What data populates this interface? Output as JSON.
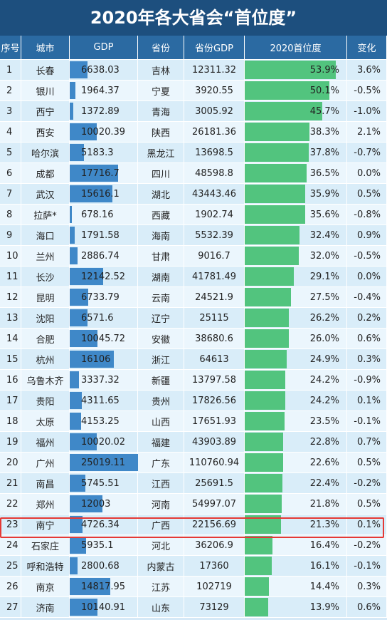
{
  "title": "2020年各大省会“首位度”",
  "headers": [
    "序号",
    "城市",
    "GDP",
    "省份",
    "省份GDP",
    "2020首位度",
    "变化"
  ],
  "colors": {
    "title_bg": "#1d4f7e",
    "header_bg": "#2b6aa2",
    "gdp_bar": "#3f88c8",
    "share_bar": "#52c47e",
    "highlight": "#e53935"
  },
  "highlight_rank": 23,
  "chart_data": {
    "type": "table",
    "title": "2020年各大省会“首位度”",
    "gdp_axis_max": 25019.11,
    "share_axis_max": 53.9,
    "rows": [
      {
        "rank": "1",
        "city": "长春",
        "gdp": "6638.03",
        "province": "吉林",
        "prov_gdp": "12311.32",
        "primacy": "53.9%",
        "change": "3.6%",
        "gdp_v": 6638.03,
        "primacy_v": 53.9
      },
      {
        "rank": "2",
        "city": "银川",
        "gdp": "1964.37",
        "province": "宁夏",
        "prov_gdp": "3920.55",
        "primacy": "50.1%",
        "change": "-0.5%",
        "gdp_v": 1964.37,
        "primacy_v": 50.1
      },
      {
        "rank": "3",
        "city": "西宁",
        "gdp": "1372.89",
        "province": "青海",
        "prov_gdp": "3005.92",
        "primacy": "45.7%",
        "change": "-1.0%",
        "gdp_v": 1372.89,
        "primacy_v": 45.7
      },
      {
        "rank": "4",
        "city": "西安",
        "gdp": "10020.39",
        "province": "陕西",
        "prov_gdp": "26181.36",
        "primacy": "38.3%",
        "change": "2.1%",
        "gdp_v": 10020.39,
        "primacy_v": 38.3
      },
      {
        "rank": "5",
        "city": "哈尔滨",
        "gdp": "5183.3",
        "province": "黑龙江",
        "prov_gdp": "13698.5",
        "primacy": "37.8%",
        "change": "-0.7%",
        "gdp_v": 5183.3,
        "primacy_v": 37.8
      },
      {
        "rank": "6",
        "city": "成都",
        "gdp": "17716.7",
        "province": "四川",
        "prov_gdp": "48598.8",
        "primacy": "36.5%",
        "change": "0.0%",
        "gdp_v": 17716.7,
        "primacy_v": 36.5
      },
      {
        "rank": "7",
        "city": "武汉",
        "gdp": "15616.1",
        "province": "湖北",
        "prov_gdp": "43443.46",
        "primacy": "35.9%",
        "change": "0.5%",
        "gdp_v": 15616.1,
        "primacy_v": 35.9
      },
      {
        "rank": "8",
        "city": "拉萨*",
        "gdp": "678.16",
        "province": "西藏",
        "prov_gdp": "1902.74",
        "primacy": "35.6%",
        "change": "-0.8%",
        "gdp_v": 678.16,
        "primacy_v": 35.6
      },
      {
        "rank": "9",
        "city": "海口",
        "gdp": "1791.58",
        "province": "海南",
        "prov_gdp": "5532.39",
        "primacy": "32.4%",
        "change": "0.9%",
        "gdp_v": 1791.58,
        "primacy_v": 32.4
      },
      {
        "rank": "10",
        "city": "兰州",
        "gdp": "2886.74",
        "province": "甘肃",
        "prov_gdp": "9016.7",
        "primacy": "32.0%",
        "change": "-0.5%",
        "gdp_v": 2886.74,
        "primacy_v": 32.0
      },
      {
        "rank": "11",
        "city": "长沙",
        "gdp": "12142.52",
        "province": "湖南",
        "prov_gdp": "41781.49",
        "primacy": "29.1%",
        "change": "0.0%",
        "gdp_v": 12142.52,
        "primacy_v": 29.1
      },
      {
        "rank": "12",
        "city": "昆明",
        "gdp": "6733.79",
        "province": "云南",
        "prov_gdp": "24521.9",
        "primacy": "27.5%",
        "change": "-0.4%",
        "gdp_v": 6733.79,
        "primacy_v": 27.5
      },
      {
        "rank": "13",
        "city": "沈阳",
        "gdp": "6571.6",
        "province": "辽宁",
        "prov_gdp": "25115",
        "primacy": "26.2%",
        "change": "0.2%",
        "gdp_v": 6571.6,
        "primacy_v": 26.2
      },
      {
        "rank": "14",
        "city": "合肥",
        "gdp": "10045.72",
        "province": "安徽",
        "prov_gdp": "38680.6",
        "primacy": "26.0%",
        "change": "0.6%",
        "gdp_v": 10045.72,
        "primacy_v": 26.0
      },
      {
        "rank": "15",
        "city": "杭州",
        "gdp": "16106",
        "province": "浙江",
        "prov_gdp": "64613",
        "primacy": "24.9%",
        "change": "0.3%",
        "gdp_v": 16106,
        "primacy_v": 24.9
      },
      {
        "rank": "16",
        "city": "乌鲁木齐",
        "gdp": "3337.32",
        "province": "新疆",
        "prov_gdp": "13797.58",
        "primacy": "24.2%",
        "change": "-0.9%",
        "gdp_v": 3337.32,
        "primacy_v": 24.2
      },
      {
        "rank": "17",
        "city": "贵阳",
        "gdp": "4311.65",
        "province": "贵州",
        "prov_gdp": "17826.56",
        "primacy": "24.2%",
        "change": "0.1%",
        "gdp_v": 4311.65,
        "primacy_v": 24.2
      },
      {
        "rank": "18",
        "city": "太原",
        "gdp": "4153.25",
        "province": "山西",
        "prov_gdp": "17651.93",
        "primacy": "23.5%",
        "change": "-0.1%",
        "gdp_v": 4153.25,
        "primacy_v": 23.5
      },
      {
        "rank": "19",
        "city": "福州",
        "gdp": "10020.02",
        "province": "福建",
        "prov_gdp": "43903.89",
        "primacy": "22.8%",
        "change": "0.7%",
        "gdp_v": 10020.02,
        "primacy_v": 22.8
      },
      {
        "rank": "20",
        "city": "广州",
        "gdp": "25019.11",
        "province": "广东",
        "prov_gdp": "110760.94",
        "primacy": "22.6%",
        "change": "0.5%",
        "gdp_v": 25019.11,
        "primacy_v": 22.6
      },
      {
        "rank": "21",
        "city": "南昌",
        "gdp": "5745.51",
        "province": "江西",
        "prov_gdp": "25691.5",
        "primacy": "22.4%",
        "change": "-0.2%",
        "gdp_v": 5745.51,
        "primacy_v": 22.4
      },
      {
        "rank": "22",
        "city": "郑州",
        "gdp": "12003",
        "province": "河南",
        "prov_gdp": "54997.07",
        "primacy": "21.8%",
        "change": "0.5%",
        "gdp_v": 12003,
        "primacy_v": 21.8
      },
      {
        "rank": "23",
        "city": "南宁",
        "gdp": "4726.34",
        "province": "广西",
        "prov_gdp": "22156.69",
        "primacy": "21.3%",
        "change": "0.1%",
        "gdp_v": 4726.34,
        "primacy_v": 21.3
      },
      {
        "rank": "24",
        "city": "石家庄",
        "gdp": "5935.1",
        "province": "河北",
        "prov_gdp": "36206.9",
        "primacy": "16.4%",
        "change": "-0.2%",
        "gdp_v": 5935.1,
        "primacy_v": 16.4
      },
      {
        "rank": "25",
        "city": "呼和浩特",
        "gdp": "2800.68",
        "province": "内蒙古",
        "prov_gdp": "17360",
        "primacy": "16.1%",
        "change": "-0.1%",
        "gdp_v": 2800.68,
        "primacy_v": 16.1
      },
      {
        "rank": "26",
        "city": "南京",
        "gdp": "14817.95",
        "province": "江苏",
        "prov_gdp": "102719",
        "primacy": "14.4%",
        "change": "0.3%",
        "gdp_v": 14817.95,
        "primacy_v": 14.4
      },
      {
        "rank": "27",
        "city": "济南",
        "gdp": "10140.91",
        "province": "山东",
        "prov_gdp": "73129",
        "primacy": "13.9%",
        "change": "0.6%",
        "gdp_v": 10140.91,
        "primacy_v": 13.9
      }
    ]
  }
}
